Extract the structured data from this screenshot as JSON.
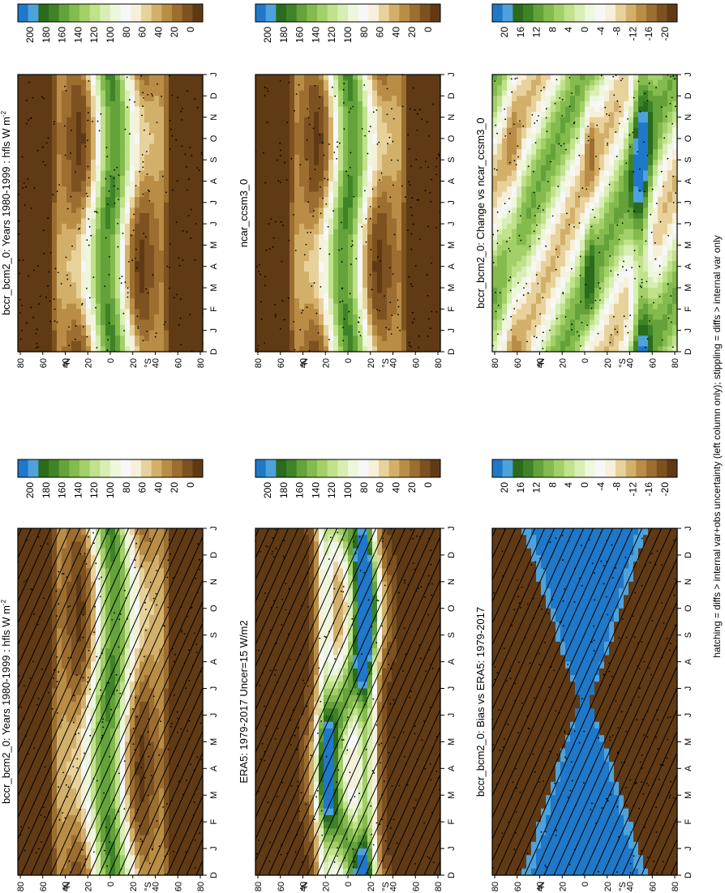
{
  "footnote": "hatching = diffs > internal var+obs uncertainty (left column only); stippling = diffs > internal var only",
  "chart_data": [
    {
      "type": "heatmap",
      "panel": "left-top",
      "title": "bccr_bcm2_0: Years 1980-1999 : hfls W m",
      "title_sup": "-2",
      "x_ticks": [
        "D",
        "J",
        "F",
        "M",
        "A",
        "M",
        "J",
        "J",
        "A",
        "S",
        "O",
        "N",
        "D",
        "J"
      ],
      "y_ticks": [
        "80",
        "60",
        "40",
        "20",
        "0",
        "20",
        "40",
        "60",
        "80"
      ],
      "y_hemis": {
        "N": "N",
        "S": "S"
      },
      "colorbar_ticks": [
        "200",
        "180",
        "160",
        "140",
        "120",
        "100",
        "80",
        "60",
        "40",
        "20",
        "0"
      ],
      "palette": "flux",
      "seed": 1
    },
    {
      "type": "heatmap",
      "panel": "right-top",
      "title": "bccr_bcm2_0: Years 1980-1999 : hfls W m",
      "title_sup": "-2",
      "x_ticks": [
        "D",
        "J",
        "F",
        "M",
        "A",
        "M",
        "J",
        "J",
        "A",
        "S",
        "O",
        "N",
        "D",
        "J"
      ],
      "y_ticks": [
        "80",
        "60",
        "40",
        "20",
        "0",
        "20",
        "40",
        "60",
        "80"
      ],
      "y_hemis": {
        "N": "N",
        "S": "S"
      },
      "colorbar_ticks": [
        "200",
        "180",
        "160",
        "140",
        "120",
        "100",
        "80",
        "60",
        "40",
        "20",
        "0"
      ],
      "palette": "flux",
      "seed": 2
    },
    {
      "type": "heatmap",
      "panel": "left-middle",
      "title": "ERA5: 1979-2017 Uncer=15 W/m2",
      "title_sup": "",
      "x_ticks": [
        "D",
        "J",
        "F",
        "M",
        "A",
        "M",
        "J",
        "J",
        "A",
        "S",
        "O",
        "N",
        "D",
        "J"
      ],
      "y_ticks": [
        "80",
        "60",
        "40",
        "20",
        "0",
        "20",
        "40",
        "60",
        "80"
      ],
      "y_hemis": {
        "N": "N",
        "S": "S"
      },
      "colorbar_ticks": [
        "200",
        "180",
        "160",
        "140",
        "120",
        "100",
        "80",
        "60",
        "40",
        "20",
        "0"
      ],
      "palette": "flux",
      "seed": 3
    },
    {
      "type": "heatmap",
      "panel": "right-middle",
      "title": "ncar_ccsm3_0",
      "title_sup": "",
      "x_ticks": [
        "D",
        "J",
        "F",
        "M",
        "A",
        "M",
        "J",
        "J",
        "A",
        "S",
        "O",
        "N",
        "D",
        "J"
      ],
      "y_ticks": [
        "80",
        "60",
        "40",
        "20",
        "0",
        "20",
        "40",
        "60",
        "80"
      ],
      "y_hemis": {
        "N": "N",
        "S": "S"
      },
      "colorbar_ticks": [
        "200",
        "180",
        "160",
        "140",
        "120",
        "100",
        "80",
        "60",
        "40",
        "20",
        "0"
      ],
      "palette": "flux",
      "seed": 4
    },
    {
      "type": "heatmap",
      "panel": "left-bottom",
      "title": "bccr_bcm2_0: Bias vs ERA5: 1979-2017",
      "title_sup": "",
      "x_ticks": [
        "D",
        "J",
        "F",
        "M",
        "A",
        "M",
        "J",
        "J",
        "A",
        "S",
        "O",
        "N",
        "D",
        "J"
      ],
      "y_ticks": [
        "80",
        "60",
        "40",
        "20",
        "0",
        "20",
        "40",
        "60",
        "80"
      ],
      "y_hemis": {
        "N": "N",
        "S": "S"
      },
      "colorbar_ticks": [
        "20",
        "16",
        "12",
        "8",
        "4",
        "0",
        "-4",
        "-8",
        "-12",
        "-16",
        "-20"
      ],
      "palette": "diff",
      "seed": 5
    },
    {
      "type": "heatmap",
      "panel": "right-bottom",
      "title": "bccr_bcm2_0: Change vs ncar_ccsm3_0",
      "title_sup": "",
      "x_ticks": [
        "D",
        "J",
        "F",
        "M",
        "A",
        "M",
        "J",
        "J",
        "A",
        "S",
        "O",
        "N",
        "D",
        "J"
      ],
      "y_ticks": [
        "80",
        "60",
        "40",
        "20",
        "0",
        "20",
        "40",
        "60",
        "80"
      ],
      "y_hemis": {
        "N": "N",
        "S": "S"
      },
      "colorbar_ticks": [
        "20",
        "16",
        "12",
        "8",
        "4",
        "0",
        "-4",
        "-8",
        "-12",
        "-16",
        "-20"
      ],
      "palette": "diff",
      "seed": 6
    }
  ],
  "colors": {
    "flux": [
      "#603a14",
      "#7e5220",
      "#9c6e30",
      "#b98d45",
      "#d3b06a",
      "#e8d29c",
      "#f6f0da",
      "#f7f7f7",
      "#edf7dc",
      "#d8eeb4",
      "#bfe28b",
      "#a2d069",
      "#84bb4e",
      "#64a23a",
      "#3e8427",
      "#2a6c1c",
      "#4ea2dc",
      "#1f78c8"
    ],
    "diff": [
      "#603a14",
      "#7e5220",
      "#9c6e30",
      "#b98d45",
      "#d3b06a",
      "#e8d29c",
      "#f6f0da",
      "#f7f7f7",
      "#edf7dc",
      "#d8eeb4",
      "#bfe28b",
      "#a2d069",
      "#84bb4e",
      "#64a23a",
      "#3e8427",
      "#2a6c1c",
      "#4ea2dc",
      "#1f78c8"
    ]
  }
}
